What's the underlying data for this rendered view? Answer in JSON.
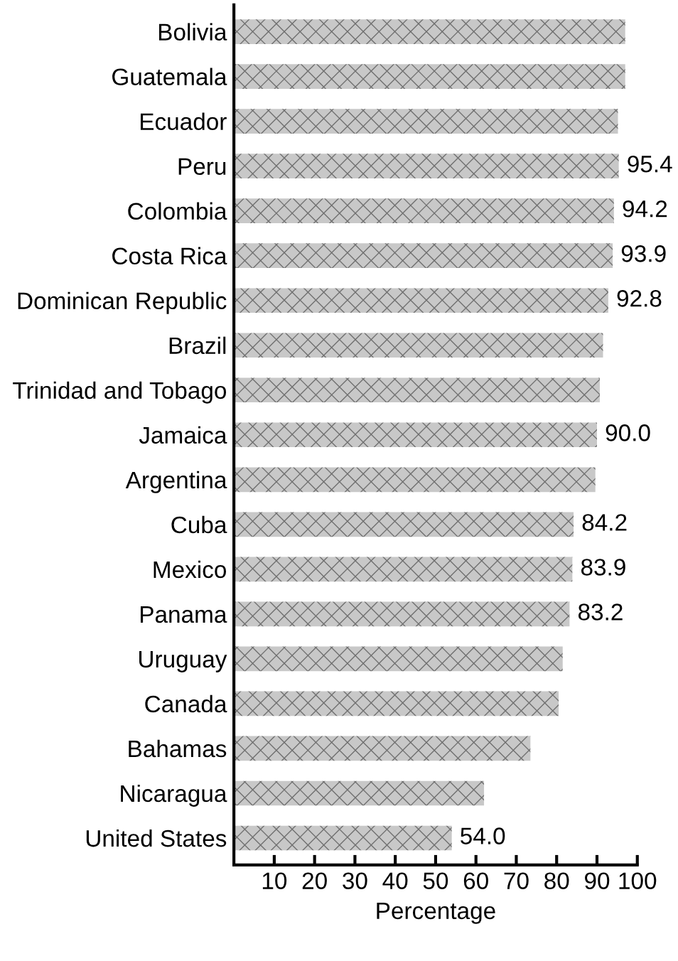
{
  "chart_data": {
    "type": "bar",
    "orientation": "horizontal",
    "xlabel": "Percentage",
    "categories": [
      "Bolivia",
      "Guatemala",
      "Ecuador",
      "Peru",
      "Colombia",
      "Costa Rica",
      "Dominican Republic",
      "Brazil",
      "Trinidad and Tobago",
      "Jamaica",
      "Argentina",
      "Cuba",
      "Mexico",
      "Panama",
      "Uruguay",
      "Canada",
      "Bahamas",
      "Nicaragua",
      "United States"
    ],
    "values": [
      97.0,
      97.0,
      95.2,
      95.4,
      94.2,
      93.9,
      92.8,
      91.5,
      90.7,
      90.0,
      89.6,
      84.2,
      83.9,
      83.2,
      81.5,
      80.5,
      73.5,
      62.0,
      54.0
    ],
    "value_labels": [
      null,
      null,
      null,
      "95.4",
      "94.2",
      "93.9",
      "92.8",
      null,
      null,
      "90.0",
      null,
      "84.2",
      "83.9",
      "83.2",
      null,
      null,
      null,
      null,
      "54.0"
    ],
    "color": "#c8c8c8",
    "xlim": [
      0,
      100
    ],
    "xticks": [
      10,
      20,
      30,
      40,
      50,
      60,
      70,
      80,
      90,
      100
    ],
    "grid": false,
    "legend": false
  }
}
